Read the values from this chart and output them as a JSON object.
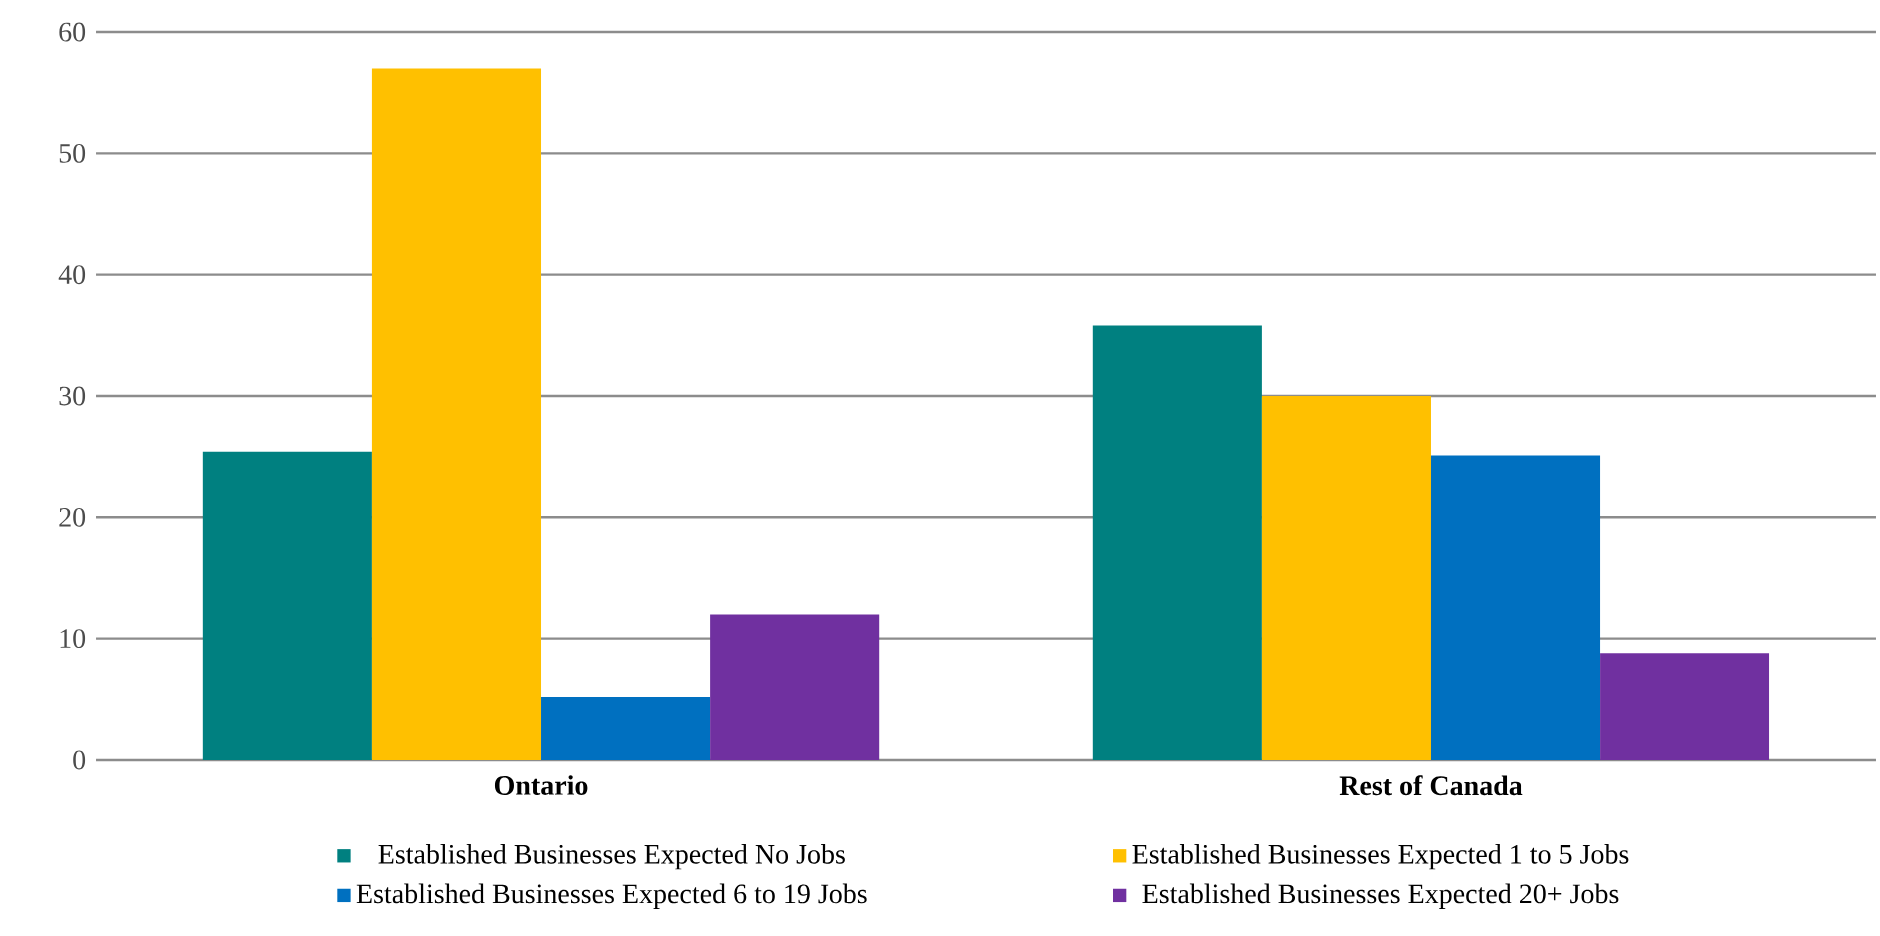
{
  "chart_data": {
    "type": "bar",
    "categories": [
      "Ontario",
      "Rest of Canada"
    ],
    "series": [
      {
        "name": "Established Businesses Expected No Jobs",
        "color": "#008080",
        "values": [
          25.4,
          35.8
        ]
      },
      {
        "name": "Established Businesses Expected 1 to 5 Jobs",
        "color": "#ffc000",
        "values": [
          57.0,
          30.0
        ]
      },
      {
        "name": "Established Businesses Expected 6 to 19 Jobs",
        "color": "#0070c0",
        "values": [
          5.2,
          25.1
        ]
      },
      {
        "name": "Established Businesses Expected 20+ Jobs",
        "color": "#7030a0",
        "values": [
          12.0,
          8.8
        ]
      }
    ],
    "ylim": [
      0,
      60
    ],
    "yticks": [
      0,
      10,
      20,
      30,
      40,
      50,
      60
    ],
    "grid": "y",
    "legend": "bottom"
  }
}
